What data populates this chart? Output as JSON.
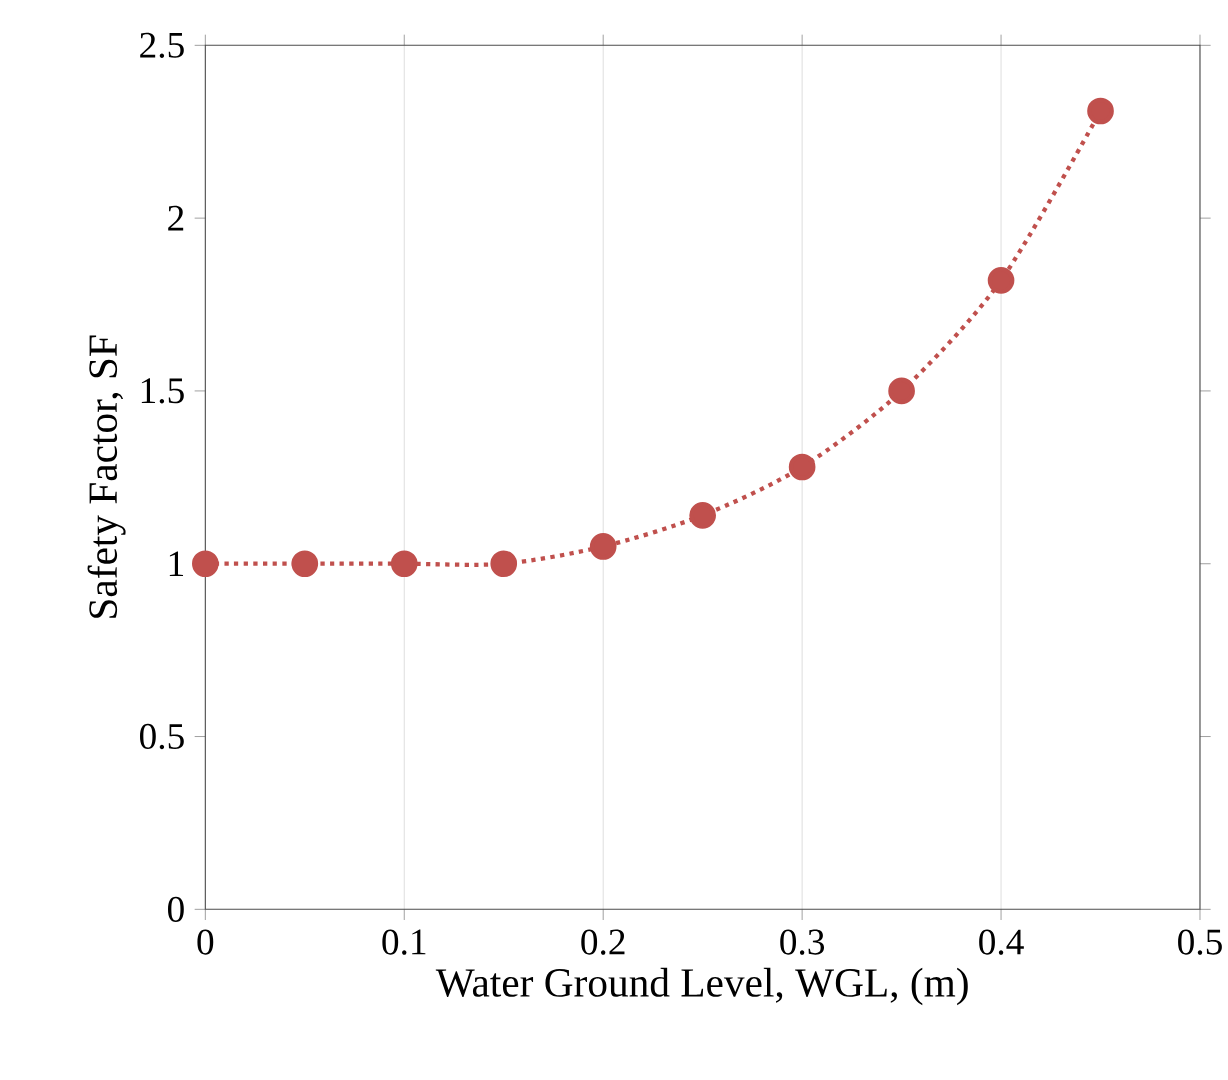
{
  "chart_data": {
    "type": "line",
    "xlabel": "Water Ground Level, WGL, (m)",
    "ylabel": "Safety Factor, SF",
    "x": [
      0,
      0.05,
      0.1,
      0.15,
      0.2,
      0.25,
      0.3,
      0.35,
      0.4,
      0.45
    ],
    "series": [
      {
        "color": "#c0504d",
        "values": [
          1.0,
          1.0,
          1.0,
          1.0,
          1.05,
          1.14,
          1.28,
          1.5,
          1.82,
          2.31
        ]
      }
    ],
    "xlim": [
      0,
      0.5
    ],
    "ylim": [
      0,
      2.5
    ],
    "xticks": [
      0,
      0.1,
      0.2,
      0.3,
      0.4,
      0.5
    ],
    "yticks": [
      0,
      0.5,
      1,
      1.5,
      2,
      2.5
    ],
    "grid": "x",
    "marker": "circle",
    "line_style": "dotted"
  }
}
